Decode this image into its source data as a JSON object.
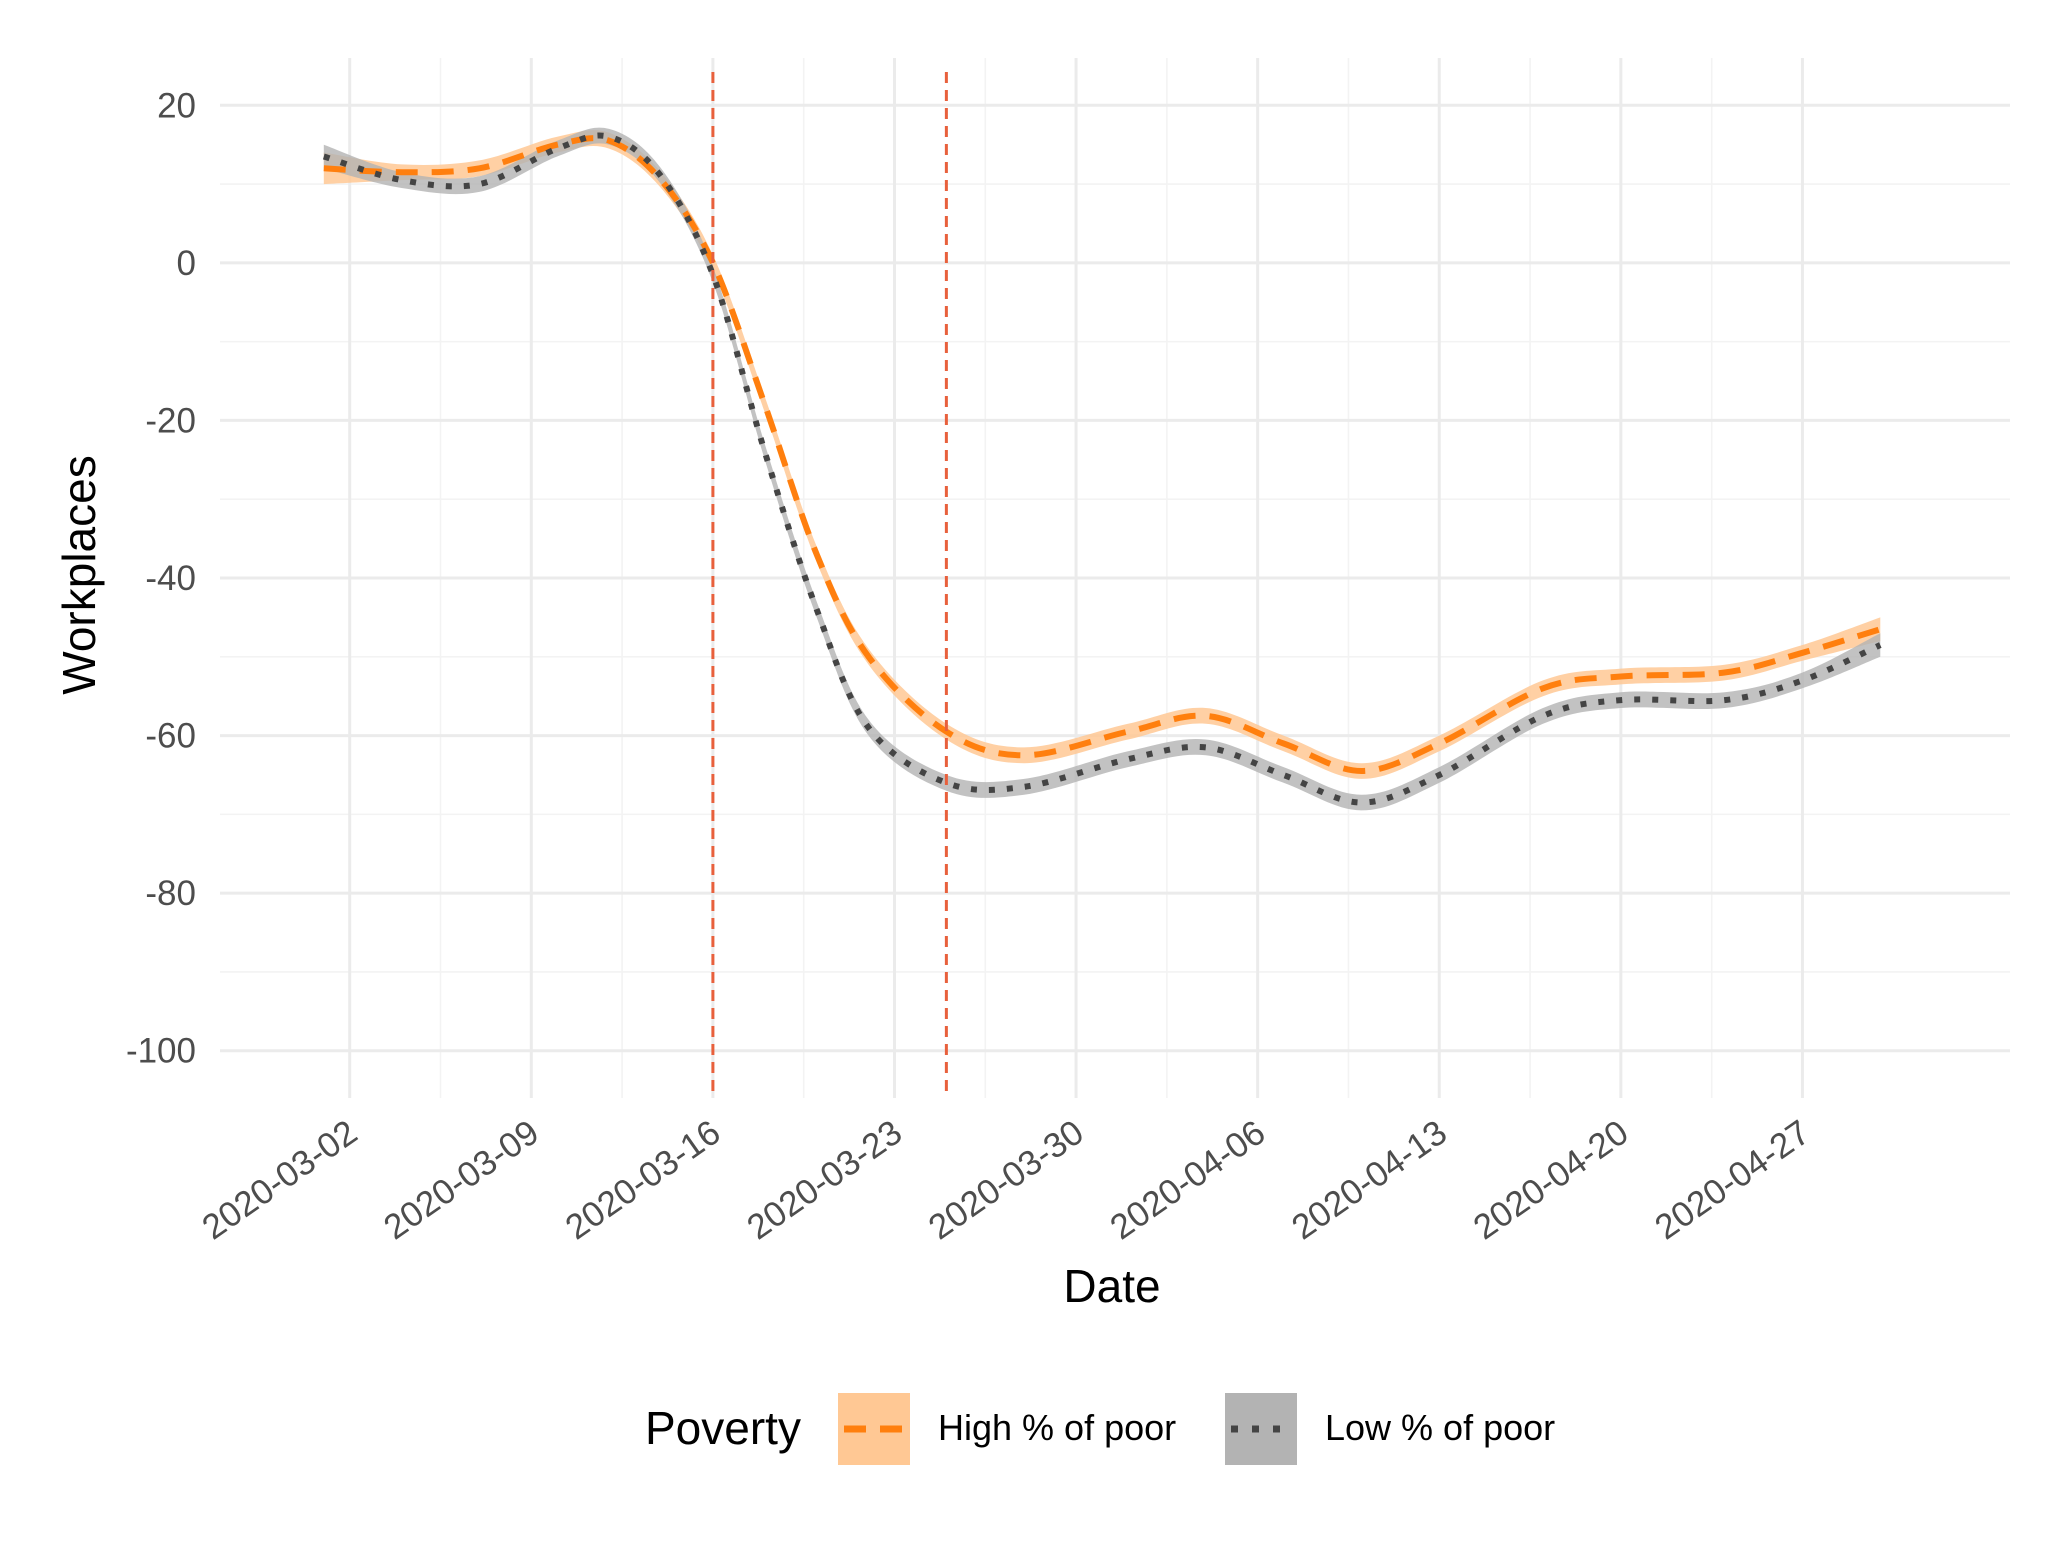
{
  "chart_data": {
    "type": "line",
    "xlabel": "Date",
    "ylabel": "Workplaces",
    "x_axis": {
      "type": "date",
      "range": [
        "2020-02-26",
        "2020-05-05"
      ],
      "ticks": [
        "2020-03-02",
        "2020-03-09",
        "2020-03-16",
        "2020-03-23",
        "2020-03-30",
        "2020-04-06",
        "2020-04-13",
        "2020-04-20",
        "2020-04-27"
      ]
    },
    "y_axis": {
      "range": [
        -106,
        26
      ],
      "ticks": [
        20,
        0,
        -20,
        -40,
        -60,
        -80,
        -100
      ],
      "tick_labels": [
        "20",
        "0",
        "-20",
        "-40",
        "-60",
        "-80",
        "-100"
      ]
    },
    "grid": true,
    "vlines": [
      {
        "date": "2020-03-16",
        "color": "#e8603c",
        "style": "dashed"
      },
      {
        "date": "2020-03-25",
        "color": "#e8603c",
        "style": "dashed"
      }
    ],
    "legend": {
      "title": "Poverty",
      "placement": "bottom"
    },
    "series": [
      {
        "name": "High % of poor",
        "line_color": "#ff7f0e",
        "band_color": "#ffc894",
        "line_style": "dashed",
        "points": [
          {
            "x": "2020-03-01",
            "y": 12,
            "lo": 10,
            "hi": 14
          },
          {
            "x": "2020-03-04",
            "y": 11.5,
            "lo": 10.5,
            "hi": 12.5
          },
          {
            "x": "2020-03-07",
            "y": 12,
            "lo": 11,
            "hi": 13
          },
          {
            "x": "2020-03-10",
            "y": 15,
            "lo": 14,
            "hi": 16
          },
          {
            "x": "2020-03-12",
            "y": 15.5,
            "lo": 14.5,
            "hi": 16.5
          },
          {
            "x": "2020-03-14",
            "y": 10.5,
            "lo": 9.5,
            "hi": 11.5
          },
          {
            "x": "2020-03-16",
            "y": 0,
            "lo": -1,
            "hi": 1
          },
          {
            "x": "2020-03-18",
            "y": -18,
            "lo": -19,
            "hi": -17
          },
          {
            "x": "2020-03-20",
            "y": -37,
            "lo": -38,
            "hi": -36
          },
          {
            "x": "2020-03-22",
            "y": -50,
            "lo": -51,
            "hi": -49
          },
          {
            "x": "2020-03-25",
            "y": -59.5,
            "lo": -60.5,
            "hi": -58.5
          },
          {
            "x": "2020-03-28",
            "y": -62.5,
            "lo": -63.5,
            "hi": -61.5
          },
          {
            "x": "2020-04-01",
            "y": -59.5,
            "lo": -60.5,
            "hi": -58.5
          },
          {
            "x": "2020-04-04",
            "y": -57.5,
            "lo": -58.5,
            "hi": -56.5
          },
          {
            "x": "2020-04-07",
            "y": -61,
            "lo": -62,
            "hi": -60
          },
          {
            "x": "2020-04-10",
            "y": -64.5,
            "lo": -65.5,
            "hi": -63.5
          },
          {
            "x": "2020-04-13",
            "y": -61,
            "lo": -62,
            "hi": -60
          },
          {
            "x": "2020-04-17",
            "y": -54,
            "lo": -55,
            "hi": -53
          },
          {
            "x": "2020-04-20",
            "y": -52.5,
            "lo": -53.5,
            "hi": -51.5
          },
          {
            "x": "2020-04-24",
            "y": -52,
            "lo": -53,
            "hi": -51
          },
          {
            "x": "2020-04-27",
            "y": -49.5,
            "lo": -50.5,
            "hi": -48.5
          },
          {
            "x": "2020-04-30",
            "y": -46.5,
            "lo": -48,
            "hi": -45
          }
        ]
      },
      {
        "name": "Low % of poor",
        "line_color": "#444444",
        "band_color": "#b3b3b3",
        "line_style": "dotted",
        "points": [
          {
            "x": "2020-03-01",
            "y": 13.5,
            "lo": 12,
            "hi": 15
          },
          {
            "x": "2020-03-04",
            "y": 10.5,
            "lo": 9.5,
            "hi": 11.5
          },
          {
            "x": "2020-03-07",
            "y": 10,
            "lo": 9,
            "hi": 11
          },
          {
            "x": "2020-03-10",
            "y": 14.5,
            "lo": 13.5,
            "hi": 15.5
          },
          {
            "x": "2020-03-12",
            "y": 16,
            "lo": 15,
            "hi": 17
          },
          {
            "x": "2020-03-14",
            "y": 11,
            "lo": 10,
            "hi": 12
          },
          {
            "x": "2020-03-16",
            "y": -1.5,
            "lo": -2.5,
            "hi": -0.5
          },
          {
            "x": "2020-03-18",
            "y": -24,
            "lo": -25,
            "hi": -23
          },
          {
            "x": "2020-03-20",
            "y": -44,
            "lo": -45,
            "hi": -43
          },
          {
            "x": "2020-03-22",
            "y": -59,
            "lo": -60,
            "hi": -58
          },
          {
            "x": "2020-03-25",
            "y": -66,
            "lo": -67,
            "hi": -65
          },
          {
            "x": "2020-03-28",
            "y": -66.5,
            "lo": -67.5,
            "hi": -65.5
          },
          {
            "x": "2020-04-01",
            "y": -63,
            "lo": -64,
            "hi": -62
          },
          {
            "x": "2020-04-04",
            "y": -61.5,
            "lo": -62.5,
            "hi": -60.5
          },
          {
            "x": "2020-04-07",
            "y": -65,
            "lo": -66,
            "hi": -64
          },
          {
            "x": "2020-04-10",
            "y": -68.5,
            "lo": -69.5,
            "hi": -67.5
          },
          {
            "x": "2020-04-13",
            "y": -65,
            "lo": -66,
            "hi": -64
          },
          {
            "x": "2020-04-17",
            "y": -57.5,
            "lo": -58.5,
            "hi": -56.5
          },
          {
            "x": "2020-04-20",
            "y": -55.5,
            "lo": -56.5,
            "hi": -54.5
          },
          {
            "x": "2020-04-24",
            "y": -55.5,
            "lo": -56.5,
            "hi": -54.5
          },
          {
            "x": "2020-04-27",
            "y": -53,
            "lo": -54,
            "hi": -52
          },
          {
            "x": "2020-04-30",
            "y": -48.5,
            "lo": -50,
            "hi": -47
          }
        ]
      }
    ]
  }
}
